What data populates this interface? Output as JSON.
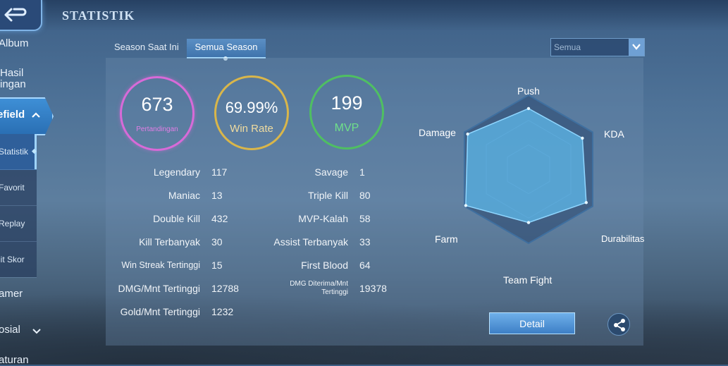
{
  "header": {
    "title": "STATISTIK"
  },
  "sidebar": {
    "items": [
      "Album",
      "Hasil\ningan",
      "efield",
      "amer",
      "osial",
      "aturan"
    ],
    "active": "efield",
    "submenu": [
      "Statistik",
      "Favorit",
      "Replay",
      "lit Skor"
    ],
    "submenu_active": "Statistik"
  },
  "tabs": [
    "Season Saat Ini",
    "Semua Season"
  ],
  "active_tab": "Semua Season",
  "filter": {
    "selected": "Semua"
  },
  "highlights": {
    "matches": {
      "value": "673",
      "label": "Pertandingan"
    },
    "winrate": {
      "value": "69.99%",
      "label": "Win Rate"
    },
    "mvp": {
      "value": "199",
      "label": "MVP"
    }
  },
  "stats_left": [
    {
      "label": "Legendary",
      "value": "117"
    },
    {
      "label": "Maniac",
      "value": "13"
    },
    {
      "label": "Double Kill",
      "value": "432"
    },
    {
      "label": "Kill Terbanyak",
      "value": "30"
    },
    {
      "label": "Win Streak Tertinggi",
      "value": "15"
    },
    {
      "label": "DMG/Mnt Tertinggi",
      "value": "12788"
    },
    {
      "label": "Gold/Mnt Tertinggi",
      "value": "1232"
    }
  ],
  "stats_right": [
    {
      "label": "Savage",
      "value": "1"
    },
    {
      "label": "Triple Kill",
      "value": "80"
    },
    {
      "label": "MVP-Kalah",
      "value": "58"
    },
    {
      "label": "Assist Terbanyak",
      "value": "33"
    },
    {
      "label": "First Blood",
      "value": "64"
    },
    {
      "label": "DMG Diterima/Mnt\nTertinggi",
      "value": "19378"
    }
  ],
  "radar": {
    "labels": [
      "Push",
      "KDA",
      "Durabilitas",
      "Team Fight",
      "Farm",
      "Damage"
    ],
    "values": [
      0.82,
      0.84,
      0.9,
      0.72,
      0.98,
      0.95
    ]
  },
  "actions": {
    "detail": "Detail"
  },
  "icons": {
    "back": "back-arrow-icon",
    "share": "share-icon",
    "dropdown": "chevron-down-icon"
  }
}
